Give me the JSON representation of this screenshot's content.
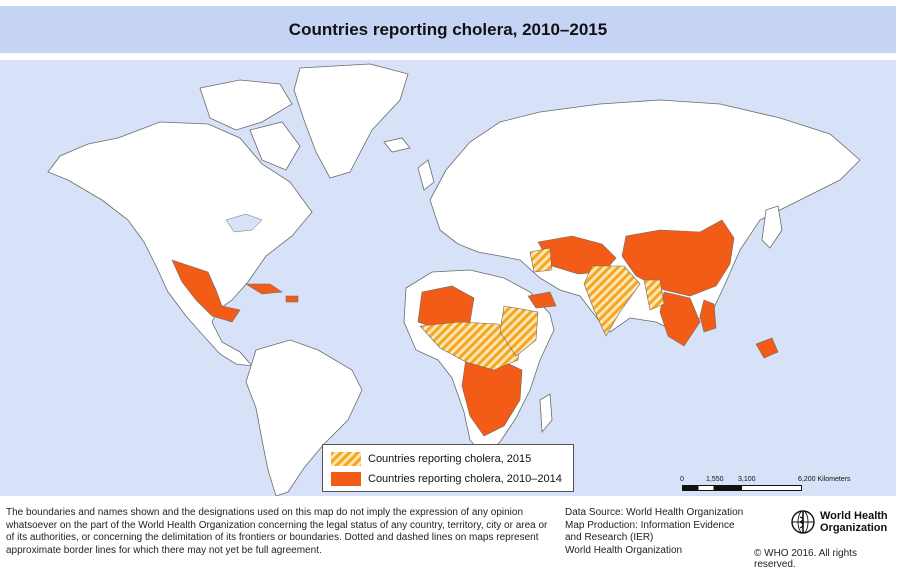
{
  "title": "Countries reporting cholera, 2010–2015",
  "legend": {
    "item_2015": "Countries reporting cholera, 2015",
    "item_2010_2014": "Countries reporting cholera, 2010–2014"
  },
  "colors": {
    "reported_2010_2014": "#f25c17",
    "reported_2015_hatch": "#f5a623",
    "ocean": "#d7e1f7",
    "land": "#ffffff",
    "title_bar": "#c5d4f5"
  },
  "scale_bar": {
    "zero": "0",
    "mark1": "1,550",
    "mark2": "3,100",
    "mark3": "6,200 Kilometers"
  },
  "disclaimer": "The boundaries and names shown and the designations used on this map do not imply the expression of any opinion whatsoever on the part of the World Health Organization concerning the legal status of any country, territory, city or area or of its authorities, or concerning the delimitation of its frontiers or boundaries. Dotted and dashed lines on maps represent approximate border lines for which there may not yet be full agreement.",
  "source": {
    "line1": "Data Source: World Health Organization",
    "line2": "Map Production: Information Evidence",
    "line3": "and Research (IER)",
    "line4": "World Health Organization"
  },
  "logo": {
    "line1": "World Health",
    "line2": "Organization"
  },
  "copyright": "© WHO 2016. All rights reserved."
}
